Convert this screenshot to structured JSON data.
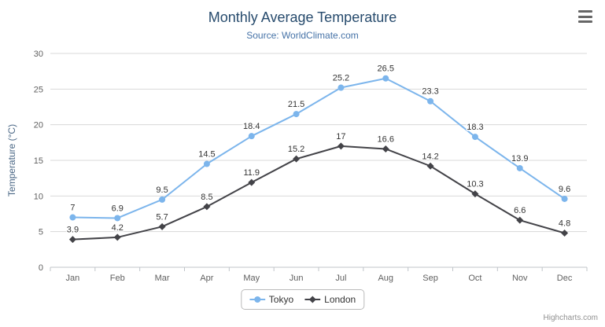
{
  "credits": "Highcharts.com",
  "chart_data": {
    "type": "line",
    "title": "Monthly Average Temperature",
    "subtitle": "Source: WorldClimate.com",
    "categories": [
      "Jan",
      "Feb",
      "Mar",
      "Apr",
      "May",
      "Jun",
      "Jul",
      "Aug",
      "Sep",
      "Oct",
      "Nov",
      "Dec"
    ],
    "series": [
      {
        "name": "Tokyo",
        "color": "#7cb5ec",
        "marker": "circle",
        "values": [
          7,
          6.9,
          9.5,
          14.5,
          18.4,
          21.5,
          25.2,
          26.5,
          23.3,
          18.3,
          13.9,
          9.6
        ]
      },
      {
        "name": "London",
        "color": "#434348",
        "marker": "diamond",
        "values": [
          3.9,
          4.2,
          5.7,
          8.5,
          11.9,
          15.2,
          17,
          16.6,
          14.2,
          10.3,
          6.6,
          4.8
        ]
      }
    ],
    "xlabel": "",
    "ylabel": "Temperature (°C)",
    "ylim": [
      0,
      30
    ],
    "ytick_step": 5,
    "grid": true,
    "legend_position": "bottom",
    "data_labels": true
  }
}
